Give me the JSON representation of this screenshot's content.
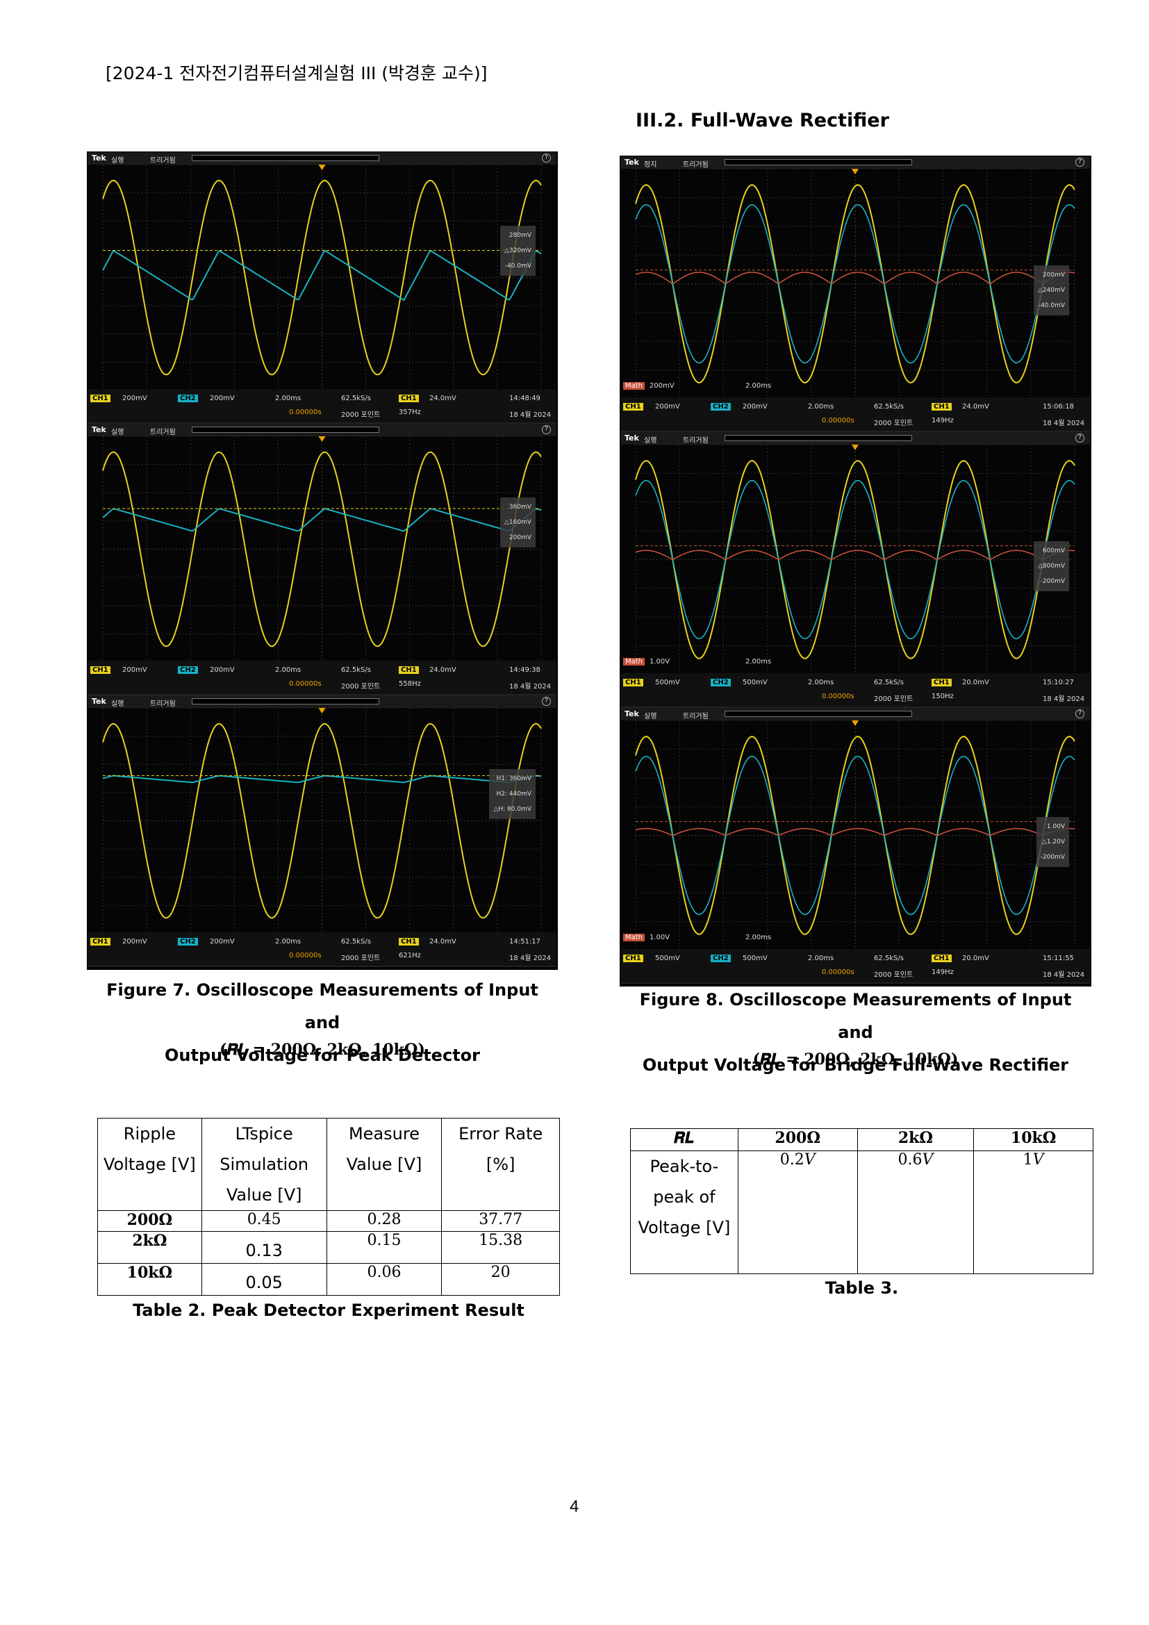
{
  "header": "[2024-1 전자전기컴퓨터설계실험 III (박경훈 교수)]",
  "section_title": "III.2. Full-Wave Rectifier",
  "scope_common": {
    "brand": "Tek",
    "trigger_label": "트리거됨",
    "ch1_label": "CH1",
    "ch2_label": "CH2",
    "math_label": "Math",
    "timebase": "2.00ms",
    "sample_rate": "62.5kS/s",
    "delay": "0.00000s",
    "points": "2000 포인트",
    "date": "18 4월 2024"
  },
  "fig7_scopes": [
    {
      "state": "실행",
      "ch1_scale": "200mV",
      "ch2_scale": "200mV",
      "trig_level": "24.0mV",
      "time": "14:48:49",
      "freq": "357Hz",
      "meas": [
        "280mV",
        "△320mV",
        "-40.0mV"
      ]
    },
    {
      "state": "실행",
      "ch1_scale": "200mV",
      "ch2_scale": "200mV",
      "trig_level": "24.0mV",
      "time": "14:49:38",
      "freq": "558Hz",
      "meas": [
        "360mV",
        "△160mV",
        "200mV"
      ]
    },
    {
      "state": "실행",
      "ch1_scale": "200mV",
      "ch2_scale": "200mV",
      "trig_level": "24.0mV",
      "time": "14:51:17",
      "freq": "621Hz",
      "meas": [
        "H1: 360mV",
        "H2: 440mV",
        "△H: 80.0mV"
      ]
    }
  ],
  "fig8_scopes": [
    {
      "state": "정지",
      "math_scale": "200mV",
      "math_time": "2.00ms",
      "ch1_scale": "200mV",
      "ch2_scale": "200mV",
      "trig_level": "24.0mV",
      "time": "15:06:18",
      "freq": "149Hz",
      "meas": [
        "200mV",
        "△240mV",
        "-40.0mV"
      ]
    },
    {
      "state": "실행",
      "math_scale": "1.00V",
      "math_time": "2.00ms",
      "ch1_scale": "500mV",
      "ch2_scale": "500mV",
      "trig_level": "20.0mV",
      "time": "15:10:27",
      "freq": "150Hz",
      "meas": [
        "600mV",
        "△800mV",
        "-200mV"
      ]
    },
    {
      "state": "실행",
      "math_scale": "1.00V",
      "math_time": "2.00ms",
      "ch1_scale": "500mV",
      "ch2_scale": "500mV",
      "trig_level": "20.0mV",
      "time": "15:11:55",
      "freq": "149Hz",
      "meas": [
        "1.00V",
        "△1.20V",
        "-200mV"
      ]
    }
  ],
  "colors": {
    "ch1": "#e8d21a",
    "ch2": "#16b3c7",
    "math": "#c8503a",
    "grid": "#2f2f2f"
  },
  "fig7_caption": {
    "line1": "Figure 7. Oscilloscope Measurements of Input and",
    "line2": "Output Voltage for Peak Detector",
    "line3": "(𝑹𝑳 = 𝟐𝟎𝟎𝛀, 𝟐𝐤𝛀, 𝟏𝟎𝐤𝛀)"
  },
  "fig8_caption": {
    "line1": "Figure 8. Oscilloscope Measurements of Input and",
    "line2": "Output Voltage for Bridge Full-Wave Rectifier",
    "line3": "(𝑹𝑳 = 𝟐𝟎𝟎𝛀, 𝟐𝐤𝛀, 𝟏𝟎𝐤𝛀)"
  },
  "table2": {
    "headers": [
      "Ripple Voltage [V]",
      "LTspice Simulation Value [V]",
      "Measure Value [V]",
      "Error Rate [%]"
    ],
    "rows": [
      {
        "rl": "𝟐𝟎𝟎𝛀",
        "sim": "0.45",
        "meas": "0.28",
        "err": "37.77"
      },
      {
        "rl": "𝟐𝐤𝛀",
        "sim": "0.13",
        "meas": "0.15",
        "err": "15.38"
      },
      {
        "rl": "𝟏𝟎𝐤𝛀",
        "sim": "0.05",
        "meas": "0.06",
        "err": "20"
      }
    ],
    "caption": "Table 2. Peak Detector Experiment Result"
  },
  "table3": {
    "headers": [
      "𝑹𝑳",
      "𝟐𝟎𝟎𝛀",
      "𝟐𝐤𝛀",
      "𝟏𝟎𝐤𝛀"
    ],
    "row_label": "Peak-to-peak of Voltage [V]",
    "values": [
      "0.2𝑉",
      "0.6𝑉",
      "1𝑉"
    ],
    "caption": "Table 3."
  },
  "page_number": "4"
}
